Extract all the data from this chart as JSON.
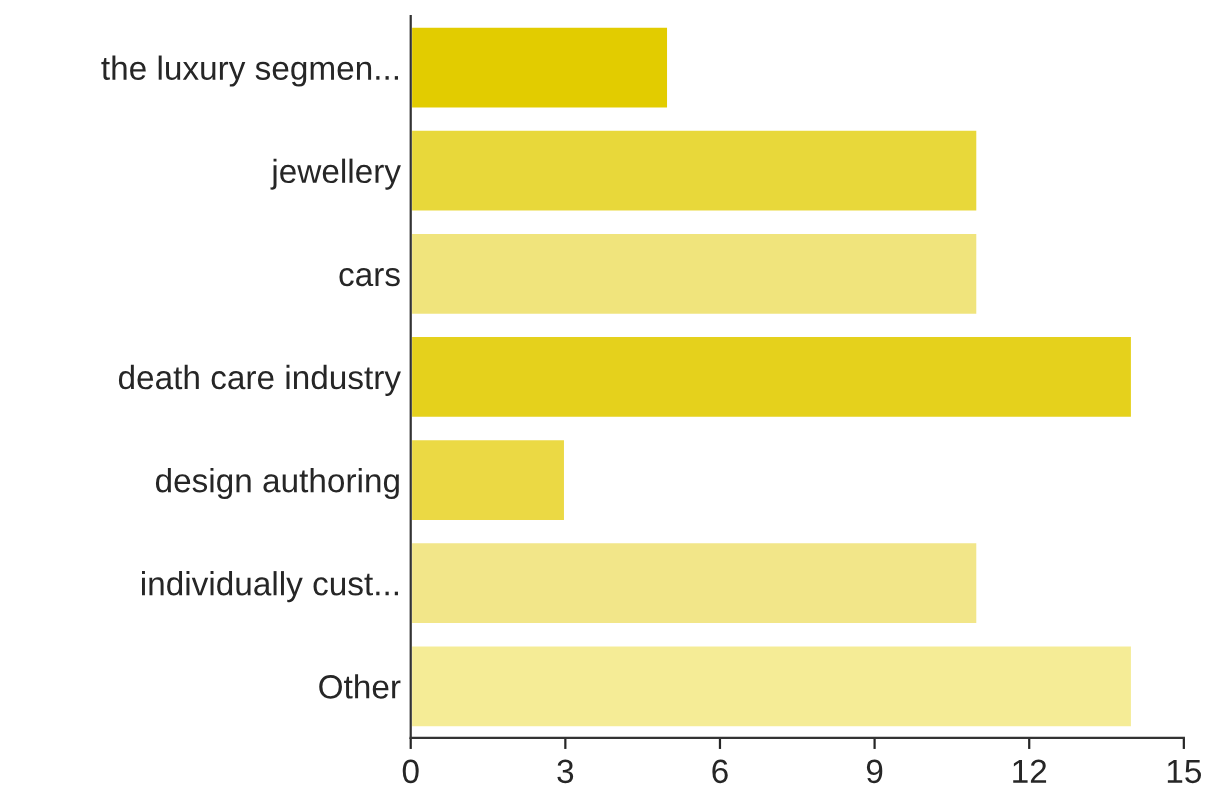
{
  "chart_data": {
    "type": "bar",
    "orientation": "horizontal",
    "categories": [
      "the luxury segmen...",
      "jewellery",
      "cars",
      "death care industry",
      "design authoring",
      "individually cust...",
      "Other"
    ],
    "values": [
      5,
      11,
      11,
      14,
      3,
      11,
      14
    ],
    "colors": [
      "#e2cc00",
      "#e8d83a",
      "#f0e47c",
      "#e5d11c",
      "#ebd944",
      "#f2e689",
      "#f5ec96"
    ],
    "xlim": [
      0,
      15
    ],
    "xticks": [
      0,
      3,
      6,
      9,
      12,
      15
    ],
    "grid": false
  }
}
